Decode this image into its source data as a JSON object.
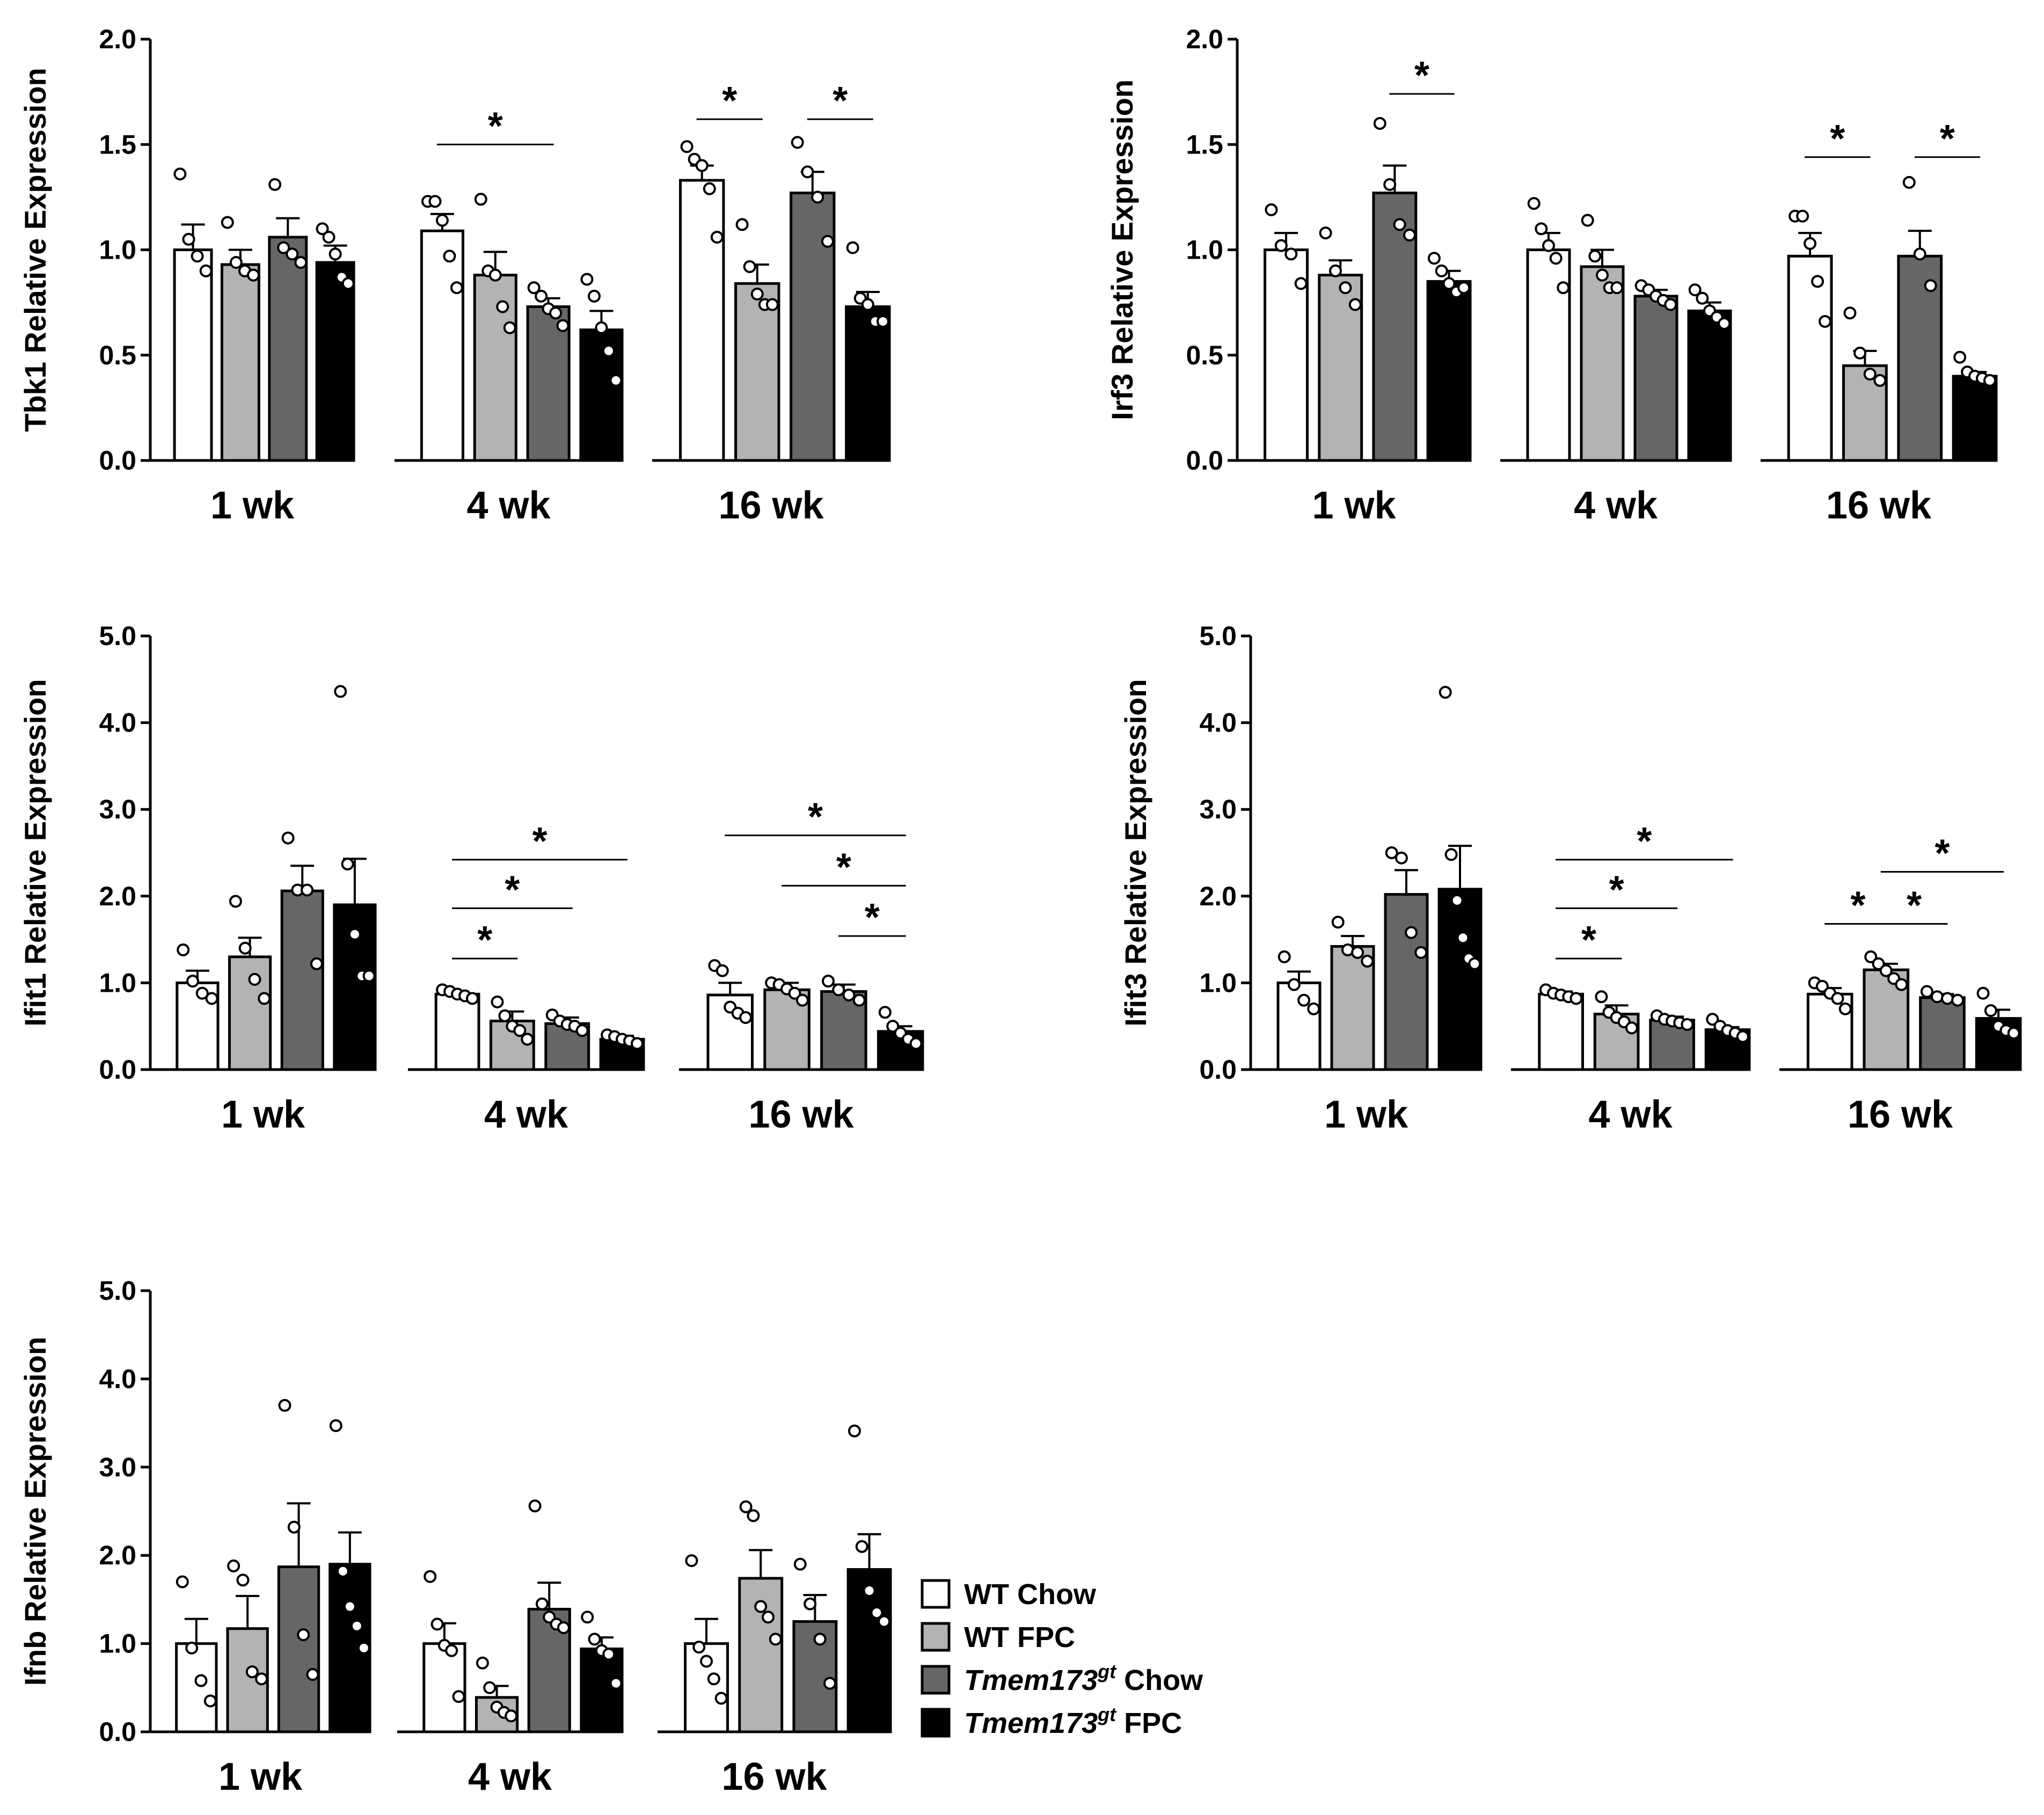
{
  "figure": {
    "title": ""
  },
  "colors": {
    "wt_chow": "#ffffff",
    "wt_fpc": "#b3b3b3",
    "tm_chow": "#666666",
    "tm_fpc": "#000000",
    "ink": "#000000"
  },
  "legend": {
    "items": [
      {
        "parts": [
          "WT Chow"
        ],
        "color": "#ffffff"
      },
      {
        "parts": [
          "WT FPC"
        ],
        "color": "#b3b3b3"
      },
      {
        "parts": [
          "Tmem173",
          "gt",
          " Chow"
        ],
        "color": "#666666"
      },
      {
        "parts": [
          "Tmem173",
          "gt",
          " FPC"
        ],
        "color": "#000000"
      }
    ]
  },
  "chart_data": [
    {
      "type": "bar",
      "id": "tbk1",
      "ylabel": "Tbk1  Relative Expression",
      "ylim": [
        0,
        2.0
      ],
      "ticks": [
        "0.0",
        "0.5",
        "1.0",
        "1.5",
        "2.0"
      ],
      "groups": [
        "1 wk",
        "4 wk",
        "16 wk"
      ],
      "series": [
        "WT Chow",
        "WT FPC",
        "Tmem173gt Chow",
        "Tmem173gt FPC"
      ],
      "values": [
        [
          1.0,
          0.93,
          1.06,
          0.94
        ],
        [
          1.09,
          0.88,
          0.73,
          0.62
        ],
        [
          1.33,
          0.84,
          1.27,
          0.73
        ]
      ],
      "errors": [
        [
          0.12,
          0.07,
          0.09,
          0.08
        ],
        [
          0.08,
          0.11,
          0.04,
          0.09
        ],
        [
          0.07,
          0.09,
          0.1,
          0.07
        ]
      ],
      "points": [
        [
          [
            1.36,
            1.05,
            0.97,
            0.9
          ],
          [
            1.13,
            0.94,
            0.9,
            0.88
          ],
          [
            1.31,
            1.01,
            0.98,
            0.94
          ],
          [
            1.1,
            1.06,
            0.98,
            0.87,
            0.84
          ]
        ],
        [
          [
            1.23,
            1.23,
            1.14,
            0.97,
            0.82
          ],
          [
            1.24,
            0.9,
            0.88,
            0.73,
            0.63
          ],
          [
            0.82,
            0.78,
            0.72,
            0.7,
            0.64
          ],
          [
            0.86,
            0.78,
            0.63,
            0.52,
            0.38
          ]
        ],
        [
          [
            1.49,
            1.43,
            1.4,
            1.29,
            1.06
          ],
          [
            1.12,
            0.92,
            0.79,
            0.74,
            0.74
          ],
          [
            1.51,
            1.37,
            1.25,
            1.04
          ],
          [
            1.01,
            0.77,
            0.74,
            0.66,
            0.66
          ]
        ]
      ],
      "sig": [
        {
          "g1": 1,
          "s1": 0,
          "g2": 1,
          "s2": 2,
          "y": 1.5,
          "label": "*"
        },
        {
          "g1": 2,
          "s1": 0,
          "g2": 2,
          "s2": 1,
          "y": 1.62,
          "label": "*"
        },
        {
          "g1": 2,
          "s1": 2,
          "g2": 2,
          "s2": 3,
          "y": 1.62,
          "label": "*"
        }
      ]
    },
    {
      "type": "bar",
      "id": "irf3",
      "ylabel": "Irf3  Relative Expression",
      "ylim": [
        0,
        2.0
      ],
      "ticks": [
        "0.0",
        "0.5",
        "1.0",
        "1.5",
        "2.0"
      ],
      "groups": [
        "1 wk",
        "4 wk",
        "16 wk"
      ],
      "series": [
        "WT Chow",
        "WT FPC",
        "Tmem173gt Chow",
        "Tmem173gt FPC"
      ],
      "values": [
        [
          1.0,
          0.88,
          1.27,
          0.85
        ],
        [
          1.0,
          0.92,
          0.78,
          0.71
        ],
        [
          0.97,
          0.45,
          0.97,
          0.4
        ]
      ],
      "errors": [
        [
          0.08,
          0.07,
          0.13,
          0.05
        ],
        [
          0.08,
          0.08,
          0.03,
          0.04
        ],
        [
          0.11,
          0.07,
          0.12,
          0.02
        ]
      ],
      "points": [
        [
          [
            1.19,
            1.02,
            0.98,
            0.84
          ],
          [
            1.08,
            0.9,
            0.82,
            0.74
          ],
          [
            1.6,
            1.31,
            1.12,
            1.07
          ],
          [
            0.96,
            0.9,
            0.84,
            0.8,
            0.82
          ]
        ],
        [
          [
            1.22,
            1.1,
            1.02,
            0.96,
            0.82
          ],
          [
            1.14,
            0.97,
            0.88,
            0.82,
            0.82
          ],
          [
            0.83,
            0.81,
            0.78,
            0.76,
            0.74
          ],
          [
            0.81,
            0.77,
            0.71,
            0.68,
            0.65
          ]
        ],
        [
          [
            1.16,
            1.16,
            1.03,
            0.85,
            0.66
          ],
          [
            0.7,
            0.51,
            0.41,
            0.38
          ],
          [
            1.32,
            0.98,
            0.83
          ],
          [
            0.49,
            0.42,
            0.4,
            0.39,
            0.38
          ]
        ]
      ],
      "sig": [
        {
          "g1": 0,
          "s1": 2,
          "g2": 0,
          "s2": 3,
          "y": 1.74,
          "label": "*"
        },
        {
          "g1": 2,
          "s1": 0,
          "g2": 2,
          "s2": 1,
          "y": 1.44,
          "label": "*"
        },
        {
          "g1": 2,
          "s1": 2,
          "g2": 2,
          "s2": 3,
          "y": 1.44,
          "label": "*"
        }
      ]
    },
    {
      "type": "bar",
      "id": "ifit1",
      "ylabel": "Ifit1 Relative Expression",
      "ylim": [
        0,
        5.0
      ],
      "ticks": [
        "0.0",
        "1.0",
        "2.0",
        "3.0",
        "4.0",
        "5.0"
      ],
      "groups": [
        "1 wk",
        "4 wk",
        "16 wk"
      ],
      "series": [
        "WT Chow",
        "WT FPC",
        "Tmem173gt Chow",
        "Tmem173gt FPC"
      ],
      "values": [
        [
          1.0,
          1.3,
          2.06,
          1.9
        ],
        [
          0.87,
          0.56,
          0.53,
          0.35
        ],
        [
          0.86,
          0.92,
          0.9,
          0.44
        ]
      ],
      "errors": [
        [
          0.14,
          0.22,
          0.29,
          0.53
        ],
        [
          0.03,
          0.11,
          0.07,
          0.04
        ],
        [
          0.14,
          0.08,
          0.08,
          0.06
        ]
      ],
      "points": [
        [
          [
            1.38,
            1.02,
            0.88,
            0.82
          ],
          [
            1.94,
            1.4,
            1.04,
            0.82
          ],
          [
            2.67,
            2.07,
            2.07,
            1.22
          ],
          [
            4.36,
            2.37,
            1.56,
            1.08,
            1.08
          ]
        ],
        [
          [
            0.92,
            0.9,
            0.87,
            0.85,
            0.82
          ],
          [
            0.78,
            0.62,
            0.5,
            0.45,
            0.35
          ],
          [
            0.63,
            0.56,
            0.52,
            0.5,
            0.45
          ],
          [
            0.4,
            0.38,
            0.35,
            0.33,
            0.3
          ]
        ],
        [
          [
            1.2,
            1.14,
            0.72,
            0.65,
            0.6
          ],
          [
            1.0,
            0.98,
            0.93,
            0.88,
            0.8
          ],
          [
            1.02,
            0.92,
            0.86,
            0.8
          ],
          [
            0.66,
            0.5,
            0.42,
            0.35,
            0.3
          ]
        ]
      ],
      "sig": [
        {
          "g1": 1,
          "s1": 0,
          "g2": 1,
          "s2": 3,
          "y": 2.42,
          "label": "*"
        },
        {
          "g1": 1,
          "s1": 0,
          "g2": 1,
          "s2": 2,
          "y": 1.86,
          "label": "*"
        },
        {
          "g1": 1,
          "s1": 0,
          "g2": 1,
          "s2": 1,
          "y": 1.28,
          "label": "*"
        },
        {
          "g1": 2,
          "s1": 0,
          "g2": 2,
          "s2": 3,
          "y": 2.7,
          "label": "*"
        },
        {
          "g1": 2,
          "s1": 1,
          "g2": 2,
          "s2": 3,
          "y": 2.12,
          "label": "*"
        },
        {
          "g1": 2,
          "s1": 2,
          "g2": 2,
          "s2": 3,
          "y": 1.54,
          "label": "*"
        }
      ]
    },
    {
      "type": "bar",
      "id": "ifit3",
      "ylabel": "Ifit3 Relative Expression",
      "ylim": [
        0,
        5.0
      ],
      "ticks": [
        "0.0",
        "1.0",
        "2.0",
        "3.0",
        "4.0",
        "5.0"
      ],
      "groups": [
        "1 wk",
        "4 wk",
        "16 wk"
      ],
      "series": [
        "WT Chow",
        "WT FPC",
        "Tmem173gt Chow",
        "Tmem173gt FPC"
      ],
      "values": [
        [
          1.0,
          1.42,
          2.02,
          2.08
        ],
        [
          0.87,
          0.64,
          0.57,
          0.46
        ],
        [
          0.87,
          1.15,
          0.83,
          0.59
        ]
      ],
      "errors": [
        [
          0.13,
          0.12,
          0.28,
          0.5
        ],
        [
          0.03,
          0.1,
          0.04,
          0.03
        ],
        [
          0.07,
          0.07,
          0.04,
          0.1
        ]
      ],
      "points": [
        [
          [
            1.3,
            0.98,
            0.8,
            0.7
          ],
          [
            1.7,
            1.38,
            1.35,
            1.25
          ],
          [
            2.5,
            2.44,
            1.58,
            1.35
          ],
          [
            4.35,
            2.48,
            1.95,
            1.52,
            1.28,
            1.22
          ]
        ],
        [
          [
            0.92,
            0.88,
            0.86,
            0.84,
            0.82
          ],
          [
            0.84,
            0.66,
            0.6,
            0.55,
            0.48
          ],
          [
            0.62,
            0.58,
            0.56,
            0.54,
            0.52
          ],
          [
            0.58,
            0.5,
            0.45,
            0.42,
            0.38
          ]
        ],
        [
          [
            1.0,
            0.96,
            0.88,
            0.82,
            0.7
          ],
          [
            1.3,
            1.22,
            1.14,
            1.05,
            0.98
          ],
          [
            0.9,
            0.84,
            0.82,
            0.8
          ],
          [
            0.88,
            0.68,
            0.5,
            0.45,
            0.42
          ]
        ]
      ],
      "sig": [
        {
          "g1": 1,
          "s1": 0,
          "g2": 1,
          "s2": 3,
          "y": 2.42,
          "label": "*"
        },
        {
          "g1": 1,
          "s1": 0,
          "g2": 1,
          "s2": 2,
          "y": 1.86,
          "label": "*"
        },
        {
          "g1": 1,
          "s1": 0,
          "g2": 1,
          "s2": 1,
          "y": 1.28,
          "label": "*"
        },
        {
          "g1": 2,
          "s1": 1,
          "g2": 2,
          "s2": 3,
          "y": 2.28,
          "label": "*"
        },
        {
          "g1": 2,
          "s1": 0,
          "g2": 2,
          "s2": 1,
          "y": 1.68,
          "label": "*"
        },
        {
          "g1": 2,
          "s1": 1,
          "g2": 2,
          "s2": 2,
          "y": 1.68,
          "label": "*"
        }
      ]
    },
    {
      "type": "bar",
      "id": "ifnb",
      "ylabel": "Ifnb  Relative Expression",
      "ylim": [
        0,
        5.0
      ],
      "ticks": [
        "0.0",
        "1.0",
        "2.0",
        "3.0",
        "4.0",
        "5.0"
      ],
      "groups": [
        "1 wk",
        "4 wk",
        "16 wk"
      ],
      "series": [
        "WT Chow",
        "WT FPC",
        "Tmem173gt Chow",
        "Tmem173gt FPC"
      ],
      "values": [
        [
          1.0,
          1.17,
          1.87,
          1.9
        ],
        [
          1.0,
          0.39,
          1.39,
          0.94
        ],
        [
          1.0,
          1.74,
          1.25,
          1.84
        ]
      ],
      "errors": [
        [
          0.28,
          0.37,
          0.72,
          0.36
        ],
        [
          0.23,
          0.13,
          0.3,
          0.13
        ],
        [
          0.28,
          0.32,
          0.3,
          0.4
        ]
      ],
      "points": [
        [
          [
            1.7,
            0.95,
            0.58,
            0.35
          ],
          [
            1.88,
            1.72,
            0.68,
            0.6
          ],
          [
            3.7,
            2.32,
            1.1,
            0.65
          ],
          [
            3.47,
            1.82,
            1.42,
            1.2,
            0.95
          ]
        ],
        [
          [
            1.76,
            1.22,
            0.98,
            0.92,
            0.4
          ],
          [
            0.78,
            0.5,
            0.28,
            0.22,
            0.18
          ],
          [
            2.56,
            1.45,
            1.3,
            1.22,
            1.18
          ],
          [
            1.3,
            1.05,
            0.92,
            0.88,
            0.55
          ]
        ],
        [
          [
            1.94,
            0.96,
            0.8,
            0.6,
            0.38
          ],
          [
            2.55,
            2.45,
            1.42,
            1.3,
            1.05
          ],
          [
            1.9,
            1.45,
            1.05,
            0.55
          ],
          [
            3.41,
            2.1,
            1.6,
            1.35,
            1.25
          ]
        ]
      ],
      "sig": []
    }
  ]
}
